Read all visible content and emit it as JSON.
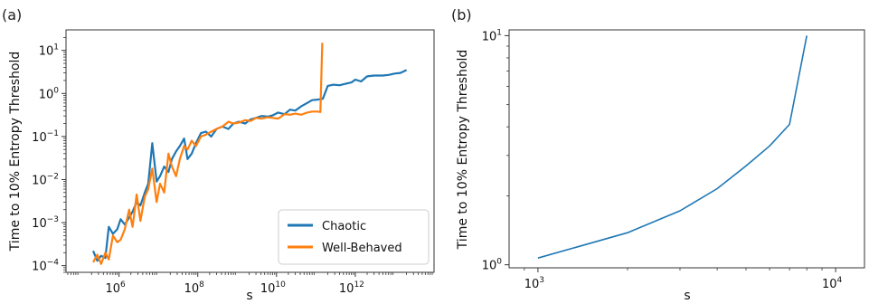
{
  "panels": [
    "(a)",
    "(b)"
  ],
  "chart_data": [
    {
      "type": "line",
      "panel": "(a)",
      "xlabel": "s",
      "ylabel": "Time to 10% Entropy Threshold",
      "xscale": "log",
      "yscale": "log",
      "xlim": [
        45000,
        100000000000000.0
      ],
      "ylim": [
        7e-05,
        30
      ],
      "xticks": [
        {
          "base": "10",
          "exp": "6",
          "value": 1000000.0
        },
        {
          "base": "10",
          "exp": "8",
          "value": 100000000.0
        },
        {
          "base": "10",
          "exp": "10",
          "value": 10000000000.0
        },
        {
          "base": "10",
          "exp": "12",
          "value": 1000000000000.0
        }
      ],
      "yticks": [
        {
          "label": "10",
          "exp": "−4",
          "value": 0.0001
        },
        {
          "label": "10",
          "exp": "−3",
          "value": 0.001
        },
        {
          "label": "10",
          "exp": "−2",
          "value": 0.01
        },
        {
          "label": "10",
          "exp": "−1",
          "value": 0.1
        },
        {
          "label": "10",
          "exp": "0",
          "value": 1
        },
        {
          "label": "10",
          "exp": "1",
          "value": 10
        }
      ],
      "legend_position": "lower-right",
      "series": [
        {
          "name": "Chaotic",
          "color": "#1f77b4",
          "points": [
            [
              220000.0,
              0.00022
            ],
            [
              280000.0,
              0.00013
            ],
            [
              350000.0,
              0.00017
            ],
            [
              450000.0,
              0.00015
            ],
            [
              550000.0,
              0.0008
            ],
            [
              700000.0,
              0.00055
            ],
            [
              900000.0,
              0.0007
            ],
            [
              1100000.0,
              0.0012
            ],
            [
              1400000.0,
              0.0009
            ],
            [
              1800000.0,
              0.0013
            ],
            [
              2200000.0,
              0.0018
            ],
            [
              2800000.0,
              0.003
            ],
            [
              3500000.0,
              0.0025
            ],
            [
              4500000.0,
              0.005
            ],
            [
              5500000.0,
              0.008
            ],
            [
              7000000.0,
              0.07
            ],
            [
              9000000.0,
              0.009
            ],
            [
              11000000.0,
              0.012
            ],
            [
              14000000.0,
              0.02
            ],
            [
              18000000.0,
              0.015
            ],
            [
              22000000.0,
              0.03
            ],
            [
              28000000.0,
              0.045
            ],
            [
              35000000.0,
              0.06
            ],
            [
              45000000.0,
              0.09
            ],
            [
              55000000.0,
              0.03
            ],
            [
              70000000.0,
              0.04
            ],
            [
              90000000.0,
              0.07
            ],
            [
              120000000.0,
              0.12
            ],
            [
              160000000.0,
              0.13
            ],
            [
              220000000.0,
              0.1
            ],
            [
              300000000.0,
              0.15
            ],
            [
              420000000.0,
              0.17
            ],
            [
              600000000.0,
              0.15
            ],
            [
              800000000.0,
              0.2
            ],
            [
              1100000000.0,
              0.22
            ],
            [
              1600000000.0,
              0.2
            ],
            [
              2200000000.0,
              0.25
            ],
            [
              3000000000.0,
              0.27
            ],
            [
              4200000000.0,
              0.3
            ],
            [
              6000000000.0,
              0.29
            ],
            [
              8000000000.0,
              0.31
            ],
            [
              11000000000.0,
              0.36
            ],
            [
              16000000000.0,
              0.33
            ],
            [
              22000000000.0,
              0.42
            ],
            [
              30000000000.0,
              0.4
            ],
            [
              42000000000.0,
              0.5
            ],
            [
              60000000000.0,
              0.6
            ],
            [
              80000000000.0,
              0.7
            ],
            [
              110000000000.0,
              0.72
            ],
            [
              150000000000.0,
              0.75
            ],
            [
              200000000000.0,
              1.5
            ],
            [
              280000000000.0,
              1.6
            ],
            [
              400000000000.0,
              1.55
            ],
            [
              600000000000.0,
              1.7
            ],
            [
              800000000000.0,
              1.8
            ],
            [
              1000000000000.0,
              2.1
            ],
            [
              1400000000000.0,
              1.9
            ],
            [
              2000000000000.0,
              2.5
            ],
            [
              3000000000000.0,
              2.6
            ],
            [
              5000000000000.0,
              2.6
            ],
            [
              7000000000000.0,
              2.7
            ],
            [
              10000000000000.0,
              2.9
            ],
            [
              14000000000000.0,
              3.0
            ],
            [
              20000000000000.0,
              3.5
            ]
          ]
        },
        {
          "name": "Well-Behaved",
          "color": "#ff7f0e",
          "points": [
            [
              220000.0,
              0.00012
            ],
            [
              280000.0,
              0.00018
            ],
            [
              350000.0,
              0.00011
            ],
            [
              450000.0,
              0.0002
            ],
            [
              550000.0,
              0.00014
            ],
            [
              700000.0,
              0.0005
            ],
            [
              900000.0,
              0.00035
            ],
            [
              1100000.0,
              0.0004
            ],
            [
              1400000.0,
              0.0007
            ],
            [
              1800000.0,
              0.002
            ],
            [
              2200000.0,
              0.0008
            ],
            [
              2800000.0,
              0.0045
            ],
            [
              3500000.0,
              0.0011
            ],
            [
              4500000.0,
              0.004
            ],
            [
              5500000.0,
              0.006
            ],
            [
              7000000.0,
              0.018
            ],
            [
              9000000.0,
              0.003
            ],
            [
              11000000.0,
              0.008
            ],
            [
              14000000.0,
              0.005
            ],
            [
              18000000.0,
              0.04
            ],
            [
              22000000.0,
              0.02
            ],
            [
              28000000.0,
              0.012
            ],
            [
              35000000.0,
              0.03
            ],
            [
              45000000.0,
              0.06
            ],
            [
              55000000.0,
              0.05
            ],
            [
              70000000.0,
              0.08
            ],
            [
              90000000.0,
              0.06
            ],
            [
              120000000.0,
              0.1
            ],
            [
              160000000.0,
              0.11
            ],
            [
              220000000.0,
              0.13
            ],
            [
              300000000.0,
              0.15
            ],
            [
              420000000.0,
              0.17
            ],
            [
              600000000.0,
              0.22
            ],
            [
              800000000.0,
              0.2
            ],
            [
              1100000000.0,
              0.21
            ],
            [
              1600000000.0,
              0.24
            ],
            [
              2200000000.0,
              0.23
            ],
            [
              3000000000.0,
              0.27
            ],
            [
              4200000000.0,
              0.26
            ],
            [
              6000000000.0,
              0.28
            ],
            [
              8000000000.0,
              0.27
            ],
            [
              11000000000.0,
              0.26
            ],
            [
              16000000000.0,
              0.33
            ],
            [
              22000000000.0,
              0.32
            ],
            [
              30000000000.0,
              0.34
            ],
            [
              42000000000.0,
              0.32
            ],
            [
              60000000000.0,
              0.36
            ],
            [
              80000000000.0,
              0.38
            ],
            [
              110000000000.0,
              0.38
            ],
            [
              130000000000.0,
              0.37
            ],
            [
              145000000000.0,
              15
            ]
          ]
        }
      ]
    },
    {
      "type": "line",
      "panel": "(b)",
      "xlabel": "s",
      "ylabel": "Time to 10% Entropy Threshold",
      "xscale": "log",
      "yscale": "log",
      "xlim": [
        800,
        12500
      ],
      "ylim": [
        0.97,
        10.6
      ],
      "xticks": [
        {
          "base": "10",
          "exp": "3",
          "value": 1000
        },
        {
          "base": "10",
          "exp": "4",
          "value": 10000
        }
      ],
      "yticks": [
        {
          "label": "10",
          "exp": "0",
          "value": 1
        },
        {
          "label": "10",
          "exp": "1",
          "value": 10
        }
      ],
      "series": [
        {
          "name": "",
          "color": "#1f77b4",
          "points": [
            [
              1000,
              1.07
            ],
            [
              2000,
              1.38
            ],
            [
              3000,
              1.72
            ],
            [
              4000,
              2.15
            ],
            [
              5000,
              2.7
            ],
            [
              6000,
              3.3
            ],
            [
              7000,
              4.1
            ],
            [
              8000,
              10
            ]
          ]
        }
      ]
    }
  ]
}
